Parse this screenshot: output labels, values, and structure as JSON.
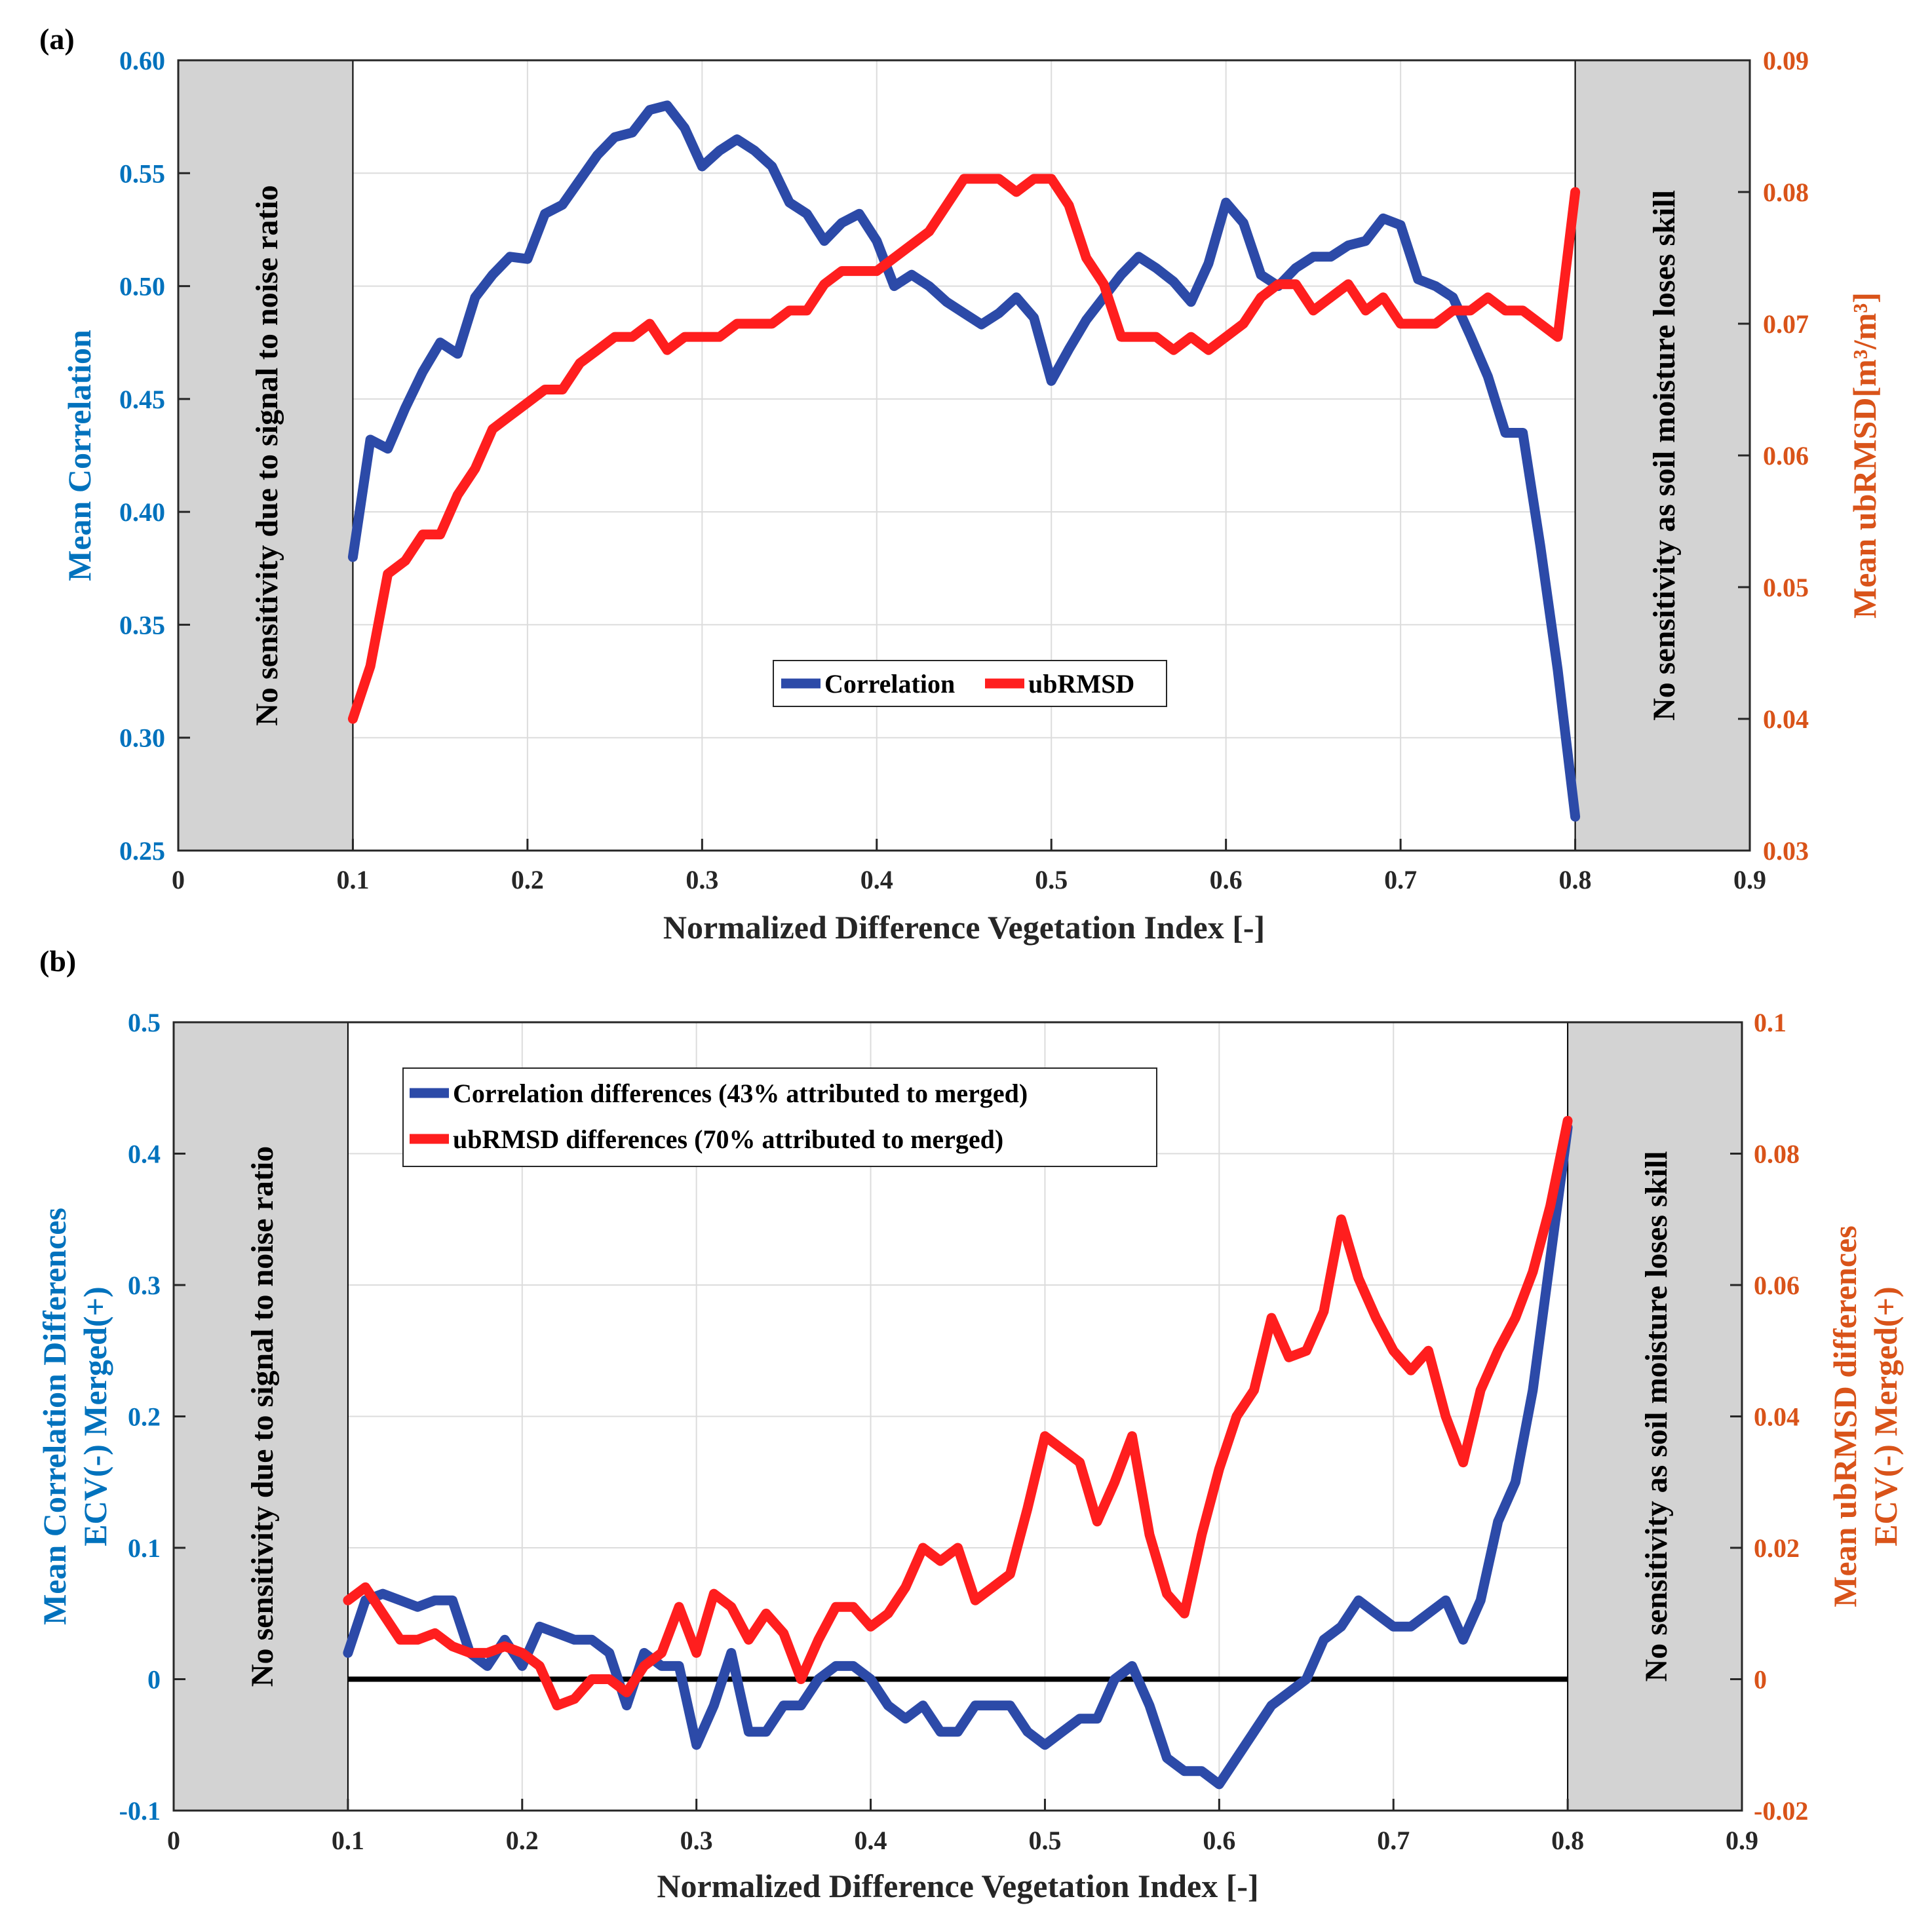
{
  "chart_data": [
    {
      "panel_label": "(a)",
      "type": "line",
      "xlabel": "Normalized Difference Vegetation Index [-]",
      "ylabel_left": "Mean Correlation",
      "ylabel_right": "Mean ubRMSD[m³/m³]",
      "xlim": [
        0,
        0.9
      ],
      "ylim_left": [
        0.25,
        0.6
      ],
      "ylim_right": [
        0.03,
        0.09
      ],
      "x_ticks": [
        "0",
        "0.1",
        "0.2",
        "0.3",
        "0.4",
        "0.5",
        "0.6",
        "0.7",
        "0.8",
        "0.9"
      ],
      "y_ticks_left": [
        "0.25",
        "0.30",
        "0.35",
        "0.40",
        "0.45",
        "0.50",
        "0.55",
        "0.60"
      ],
      "y_ticks_right": [
        "0.03",
        "0.04",
        "0.05",
        "0.06",
        "0.07",
        "0.08",
        "0.09"
      ],
      "grid": true,
      "legend": "center",
      "shaded_regions": [
        {
          "x_range": [
            0,
            0.1
          ],
          "label": "No sensitivity due to signal to noise ratio"
        },
        {
          "x_range": [
            0.8,
            0.9
          ],
          "label": "No sensitivity as soil moisture loses skill"
        }
      ],
      "series": [
        {
          "name": "Correlation",
          "axis": "left",
          "color": "#2C4AA8",
          "x": [
            0.1,
            0.11,
            0.12,
            0.13,
            0.14,
            0.15,
            0.16,
            0.17,
            0.18,
            0.19,
            0.2,
            0.21,
            0.22,
            0.23,
            0.24,
            0.25,
            0.26,
            0.27,
            0.28,
            0.29,
            0.3,
            0.31,
            0.32,
            0.33,
            0.34,
            0.35,
            0.36,
            0.37,
            0.38,
            0.39,
            0.4,
            0.41,
            0.42,
            0.43,
            0.44,
            0.45,
            0.46,
            0.47,
            0.48,
            0.49,
            0.5,
            0.51,
            0.52,
            0.53,
            0.54,
            0.55,
            0.56,
            0.57,
            0.58,
            0.59,
            0.6,
            0.61,
            0.62,
            0.63,
            0.64,
            0.65,
            0.66,
            0.67,
            0.68,
            0.69,
            0.7,
            0.71,
            0.72,
            0.73,
            0.74,
            0.75,
            0.76,
            0.77,
            0.78,
            0.79,
            0.8
          ],
          "y": [
            0.38,
            0.432,
            0.428,
            0.446,
            0.462,
            0.475,
            0.47,
            0.495,
            0.505,
            0.513,
            0.512,
            0.532,
            0.536,
            0.547,
            0.558,
            0.566,
            0.568,
            0.578,
            0.58,
            0.57,
            0.553,
            0.56,
            0.565,
            0.56,
            0.553,
            0.537,
            0.532,
            0.52,
            0.528,
            0.532,
            0.52,
            0.5,
            0.505,
            0.5,
            0.493,
            0.488,
            0.483,
            0.488,
            0.495,
            0.486,
            0.458,
            0.472,
            0.485,
            0.495,
            0.505,
            0.513,
            0.508,
            0.502,
            0.493,
            0.51,
            0.537,
            0.528,
            0.505,
            0.5,
            0.508,
            0.513,
            0.513,
            0.518,
            0.52,
            0.53,
            0.527,
            0.503,
            0.5,
            0.495,
            0.478,
            0.46,
            0.435,
            0.435,
            0.385,
            0.33,
            0.265
          ]
        },
        {
          "name": "ubRMSD",
          "axis": "right",
          "color": "#FF1E1E",
          "x": [
            0.1,
            0.11,
            0.12,
            0.13,
            0.14,
            0.15,
            0.16,
            0.17,
            0.18,
            0.19,
            0.2,
            0.21,
            0.22,
            0.23,
            0.24,
            0.25,
            0.26,
            0.27,
            0.28,
            0.29,
            0.3,
            0.31,
            0.32,
            0.33,
            0.34,
            0.35,
            0.36,
            0.37,
            0.38,
            0.39,
            0.4,
            0.41,
            0.42,
            0.43,
            0.44,
            0.45,
            0.46,
            0.47,
            0.48,
            0.49,
            0.5,
            0.51,
            0.52,
            0.53,
            0.54,
            0.55,
            0.56,
            0.57,
            0.58,
            0.59,
            0.6,
            0.61,
            0.62,
            0.63,
            0.64,
            0.65,
            0.66,
            0.67,
            0.68,
            0.69,
            0.7,
            0.71,
            0.72,
            0.73,
            0.74,
            0.75,
            0.76,
            0.77,
            0.78,
            0.79,
            0.8
          ],
          "y": [
            0.04,
            0.044,
            0.051,
            0.052,
            0.054,
            0.054,
            0.057,
            0.059,
            0.062,
            0.063,
            0.064,
            0.065,
            0.065,
            0.067,
            0.068,
            0.069,
            0.069,
            0.07,
            0.068,
            0.069,
            0.069,
            0.069,
            0.07,
            0.07,
            0.07,
            0.071,
            0.071,
            0.073,
            0.074,
            0.074,
            0.074,
            0.075,
            0.076,
            0.077,
            0.079,
            0.081,
            0.081,
            0.081,
            0.08,
            0.081,
            0.081,
            0.079,
            0.075,
            0.073,
            0.069,
            0.069,
            0.069,
            0.068,
            0.069,
            0.068,
            0.069,
            0.07,
            0.072,
            0.073,
            0.073,
            0.071,
            0.072,
            0.073,
            0.071,
            0.072,
            0.07,
            0.07,
            0.07,
            0.071,
            0.071,
            0.072,
            0.071,
            0.071,
            0.07,
            0.069,
            0.08
          ]
        }
      ]
    },
    {
      "panel_label": "(b)",
      "type": "line",
      "xlabel": "Normalized Difference Vegetation Index [-]",
      "ylabel_left": [
        "Mean Correlation Differences",
        "ECV(-) Merged(+)"
      ],
      "ylabel_right": [
        "Mean ubRMSD differences",
        "ECV(-) Merged(+)"
      ],
      "xlim": [
        0,
        0.9
      ],
      "ylim_left": [
        -0.1,
        0.5
      ],
      "ylim_right": [
        -0.02,
        0.1
      ],
      "x_ticks": [
        "0",
        "0.1",
        "0.2",
        "0.3",
        "0.4",
        "0.5",
        "0.6",
        "0.7",
        "0.8",
        "0.9"
      ],
      "y_ticks_left": [
        "-0.1",
        "0",
        "0.1",
        "0.2",
        "0.3",
        "0.4",
        "0.5"
      ],
      "y_ticks_right": [
        "-0.02",
        "0",
        "0.02",
        "0.04",
        "0.06",
        "0.08",
        "0.1"
      ],
      "grid": true,
      "legend": "top-left",
      "zero_line": 0,
      "shaded_regions": [
        {
          "x_range": [
            0,
            0.1
          ],
          "label": "No sensitivity due to signal to noise ratio"
        },
        {
          "x_range": [
            0.8,
            0.9
          ],
          "label": "No sensitivity as soil moisture loses skill"
        }
      ],
      "series": [
        {
          "name": "Correlation differences (43% attributed to merged)",
          "axis": "left",
          "color": "#2C4AA8",
          "x": [
            0.1,
            0.11,
            0.12,
            0.13,
            0.14,
            0.15,
            0.16,
            0.17,
            0.18,
            0.19,
            0.2,
            0.21,
            0.22,
            0.23,
            0.24,
            0.25,
            0.26,
            0.27,
            0.28,
            0.29,
            0.3,
            0.31,
            0.32,
            0.33,
            0.34,
            0.35,
            0.36,
            0.37,
            0.38,
            0.39,
            0.4,
            0.41,
            0.42,
            0.43,
            0.44,
            0.45,
            0.46,
            0.47,
            0.48,
            0.49,
            0.5,
            0.51,
            0.52,
            0.53,
            0.54,
            0.55,
            0.56,
            0.57,
            0.58,
            0.59,
            0.6,
            0.61,
            0.62,
            0.63,
            0.64,
            0.65,
            0.66,
            0.67,
            0.68,
            0.69,
            0.7,
            0.71,
            0.72,
            0.73,
            0.74,
            0.75,
            0.76,
            0.77,
            0.78,
            0.79,
            0.8
          ],
          "y": [
            0.02,
            0.06,
            0.065,
            0.06,
            0.055,
            0.06,
            0.06,
            0.02,
            0.01,
            0.03,
            0.01,
            0.04,
            0.035,
            0.03,
            0.03,
            0.02,
            -0.02,
            0.02,
            0.01,
            0.01,
            -0.05,
            -0.02,
            0.02,
            -0.04,
            -0.04,
            -0.02,
            -0.02,
            0.0,
            0.01,
            0.01,
            0.0,
            -0.02,
            -0.03,
            -0.02,
            -0.04,
            -0.04,
            -0.02,
            -0.02,
            -0.02,
            -0.04,
            -0.05,
            -0.04,
            -0.03,
            -0.03,
            0.0,
            0.01,
            -0.02,
            -0.06,
            -0.07,
            -0.07,
            -0.08,
            -0.06,
            -0.04,
            -0.02,
            -0.01,
            0.0,
            0.03,
            0.04,
            0.06,
            0.05,
            0.04,
            0.04,
            0.05,
            0.06,
            0.03,
            0.06,
            0.12,
            0.15,
            0.22,
            0.32,
            0.42
          ]
        },
        {
          "name": "ubRMSD differences (70% attributed to merged)",
          "axis": "right",
          "color": "#FF1E1E",
          "x": [
            0.1,
            0.11,
            0.12,
            0.13,
            0.14,
            0.15,
            0.16,
            0.17,
            0.18,
            0.19,
            0.2,
            0.21,
            0.22,
            0.23,
            0.24,
            0.25,
            0.26,
            0.27,
            0.28,
            0.29,
            0.3,
            0.31,
            0.32,
            0.33,
            0.34,
            0.35,
            0.36,
            0.37,
            0.38,
            0.39,
            0.4,
            0.41,
            0.42,
            0.43,
            0.44,
            0.45,
            0.46,
            0.47,
            0.48,
            0.49,
            0.5,
            0.51,
            0.52,
            0.53,
            0.54,
            0.55,
            0.56,
            0.57,
            0.58,
            0.59,
            0.6,
            0.61,
            0.62,
            0.63,
            0.64,
            0.65,
            0.66,
            0.67,
            0.68,
            0.69,
            0.7,
            0.71,
            0.72,
            0.73,
            0.74,
            0.75,
            0.76,
            0.77,
            0.78,
            0.79,
            0.8
          ],
          "y": [
            0.012,
            0.014,
            0.01,
            0.006,
            0.006,
            0.007,
            0.005,
            0.004,
            0.004,
            0.005,
            0.004,
            0.002,
            -0.004,
            -0.003,
            0.0,
            0.0,
            -0.002,
            0.002,
            0.004,
            0.011,
            0.004,
            0.013,
            0.011,
            0.006,
            0.01,
            0.007,
            0.0,
            0.006,
            0.011,
            0.011,
            0.008,
            0.01,
            0.014,
            0.02,
            0.018,
            0.02,
            0.012,
            0.014,
            0.016,
            0.026,
            0.037,
            0.035,
            0.033,
            0.024,
            0.03,
            0.037,
            0.022,
            0.013,
            0.01,
            0.022,
            0.032,
            0.04,
            0.044,
            0.055,
            0.049,
            0.05,
            0.056,
            0.07,
            0.061,
            0.055,
            0.05,
            0.047,
            0.05,
            0.04,
            0.033,
            0.044,
            0.05,
            0.055,
            0.062,
            0.072,
            0.085
          ]
        }
      ]
    }
  ]
}
